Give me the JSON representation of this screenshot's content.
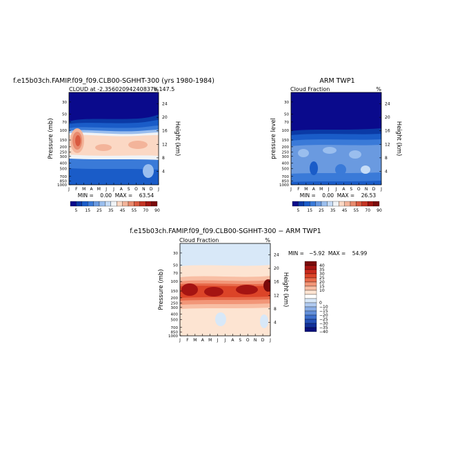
{
  "chart_data": [
    {
      "type": "heatmap",
      "title": "f.e15b03ch.FAMIP.f09_f09.CLB00-SGHHT-300 (yrs 1980-1984)",
      "subtitle": "CLOUD at -2.35602094240837e,147.5",
      "units": "%",
      "xlabel": "",
      "ylabel": "Pressure (mb)",
      "y2label": "Height (km)",
      "x_ticks": [
        "J",
        "F",
        "M",
        "A",
        "M",
        "J",
        "J",
        "A",
        "S",
        "O",
        "N",
        "D",
        "J"
      ],
      "y_ticks": [
        30,
        50,
        70,
        100,
        150,
        200,
        250,
        300,
        400,
        500,
        700,
        850,
        1000
      ],
      "y2_ticks": [
        24,
        20,
        16,
        12,
        8,
        4
      ],
      "ylim": [
        1000,
        20
      ],
      "stats": "MIN =    0.00  MAX =    63.54",
      "colorbar_labels": [
        "5",
        "15",
        "25",
        "35",
        "45",
        "55",
        "70",
        "90"
      ],
      "levels": [
        5,
        10,
        15,
        20,
        25,
        30,
        35,
        40,
        45,
        50,
        55,
        60,
        70,
        80,
        90
      ]
    },
    {
      "type": "heatmap",
      "title": "ARM TWP1",
      "subtitle": "Cloud Fraction",
      "units": "%",
      "xlabel": "",
      "ylabel": "pressure level",
      "y2label": "Height (km)",
      "x_ticks": [
        "J",
        "F",
        "M",
        "A",
        "M",
        "J",
        "J",
        "A",
        "S",
        "O",
        "N",
        "D",
        "J"
      ],
      "y_ticks": [
        30,
        50,
        70,
        100,
        150,
        200,
        250,
        300,
        400,
        500,
        700,
        850,
        1000
      ],
      "y2_ticks": [
        24,
        20,
        16,
        12,
        8,
        4
      ],
      "ylim": [
        1000,
        20
      ],
      "stats": "MIN =    0.00  MAX =    26.53",
      "colorbar_labels": [
        "5",
        "15",
        "25",
        "35",
        "45",
        "55",
        "70",
        "90"
      ],
      "levels": [
        5,
        10,
        15,
        20,
        25,
        30,
        35,
        40,
        45,
        50,
        55,
        60,
        70,
        80,
        90
      ]
    },
    {
      "type": "heatmap",
      "title": "f.e15b03ch.FAMIP.f09_f09.CLB00-SGHHT-300 − ARM TWP1",
      "subtitle": "Cloud Fraction",
      "units": "%",
      "xlabel": "",
      "ylabel": "Pressure (mb)",
      "y2label": "Height (km)",
      "x_ticks": [
        "J",
        "F",
        "M",
        "A",
        "M",
        "J",
        "J",
        "A",
        "S",
        "O",
        "N",
        "D",
        "J"
      ],
      "y_ticks": [
        30,
        50,
        70,
        100,
        150,
        200,
        250,
        300,
        400,
        500,
        700,
        850,
        1000
      ],
      "y2_ticks": [
        24,
        20,
        16,
        12,
        8,
        4
      ],
      "ylim": [
        1000,
        20
      ],
      "stats": "MIN =   −5.92  MAX =    54.99",
      "colorbar_labels": [
        "40",
        "35",
        "30",
        "25",
        "20",
        "15",
        "10",
        "0",
        "−10",
        "−15",
        "−20",
        "−25",
        "−30",
        "−35",
        "−40"
      ],
      "levels": [
        40,
        35,
        30,
        25,
        20,
        15,
        10,
        5,
        0,
        -5,
        -10,
        -15,
        -20,
        -25,
        -30,
        -35,
        -40
      ]
    }
  ],
  "colors": {
    "seq": [
      "#0a0a8c",
      "#0a3aa6",
      "#1a5cc8",
      "#3a7ad8",
      "#6a9ae0",
      "#9abeee",
      "#c6dcf6",
      "#f0f3f6",
      "#fbd8c4",
      "#f3b49a",
      "#e88a6e",
      "#d95a40",
      "#c43424",
      "#a01410",
      "#7a0a0a"
    ],
    "div": [
      "#7a0a0a",
      "#a51412",
      "#c8281c",
      "#dc4428",
      "#e86a4a",
      "#f29678",
      "#f8bea4",
      "#fde4d2",
      "#ffffff",
      "#d8e8f8",
      "#b0caf0",
      "#8aaee6",
      "#6490da",
      "#3e70cc",
      "#2450b8",
      "#12309a",
      "#08107c"
    ]
  }
}
